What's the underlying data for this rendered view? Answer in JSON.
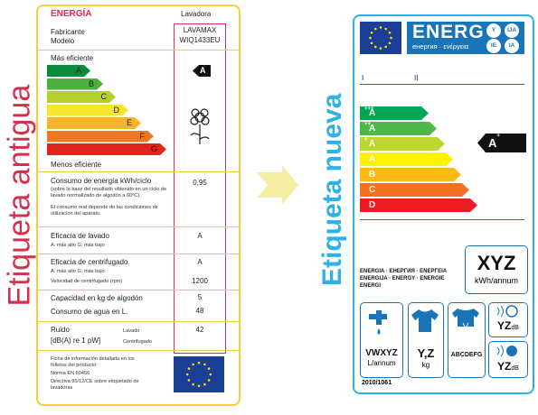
{
  "old_label": {
    "side_title": "Etiqueta antigua",
    "energy": "ENERGÍA",
    "appliance": "Lavadora",
    "manufacturer_label": "Fabricante",
    "model_label": "Modelo",
    "manufacturer": "LAVAMAX",
    "model": "WIQ1433EU",
    "most_efficient": "Más eficiente",
    "classes": [
      "A",
      "B",
      "C",
      "D",
      "E",
      "F",
      "G"
    ],
    "rating": "A",
    "least_efficient": "Menos eficiente",
    "consumption_label": "Consumo de energía kWh/ciclo",
    "consumption_note": "(sobre la base del resultado obtenido en un ciclo de lavado normalizado de algodón a 60ºC).",
    "consumption_note2": "El consumo real depende de las condiciones de utilización del aparato.",
    "consumption": "0,95",
    "wash_label": "Eficacia de lavado",
    "wash_scale": "A: más alto  G: más bajo",
    "wash": "A",
    "spin_label": "Eficacia de centrifugado",
    "spin_scale": "A: más alto  G: más bajo",
    "spin": "A",
    "speed_label": "Velocidad de centrifugado (rpm)",
    "speed": "1200",
    "capacity_label": "Capacidad en kg de algodón",
    "capacity": "5",
    "water_label": "Consumo de agua en L.",
    "water": "48",
    "noise_label": "Ruido",
    "noise_unit": "[dB(A) re 1 pW]",
    "noise_wash": "Lavado",
    "noise_spin": "Centrifugado",
    "noise": "42",
    "footer": [
      "Ficha de información detallada en los folletos del producto",
      "Norma EN 60456",
      "Directiva 95/12/CE sobre etiquetado de lavadoras"
    ]
  },
  "new_label": {
    "side_title": "Etiqueta nueva",
    "energy": "ENERG",
    "energy_sub": "енергия · ενέργεια",
    "lang_badges": [
      "Y",
      "IJA",
      "IE",
      "IA"
    ],
    "field_1": "I",
    "field_2": "II",
    "classes": [
      {
        "letter": "A",
        "sup": "+++"
      },
      {
        "letter": "A",
        "sup": "++"
      },
      {
        "letter": "A",
        "sup": "+"
      },
      {
        "letter": "A",
        "sup": ""
      },
      {
        "letter": "B",
        "sup": ""
      },
      {
        "letter": "C",
        "sup": ""
      },
      {
        "letter": "D",
        "sup": ""
      }
    ],
    "rating": {
      "letter": "A",
      "sup": "+"
    },
    "energy_words": "ENERGIA · ЕНЕРГИЯ · ΕΝΕΡΓΕΙΑ ENERGIJA · ENERGY · ENERGIE ENERGI",
    "annual_energy": "XYZ",
    "annual_energy_unit": "kWh/annum",
    "water": "VWXYZ",
    "water_unit": "L/annum",
    "capacity": "Y,Z",
    "capacity_unit": "kg",
    "spin_class": "ABCDEFG",
    "noise_wash": "YZ",
    "noise_wash_unit": "dB",
    "noise_spin": "YZ",
    "noise_spin_unit": "dB",
    "regulation": "2010/1061"
  }
}
